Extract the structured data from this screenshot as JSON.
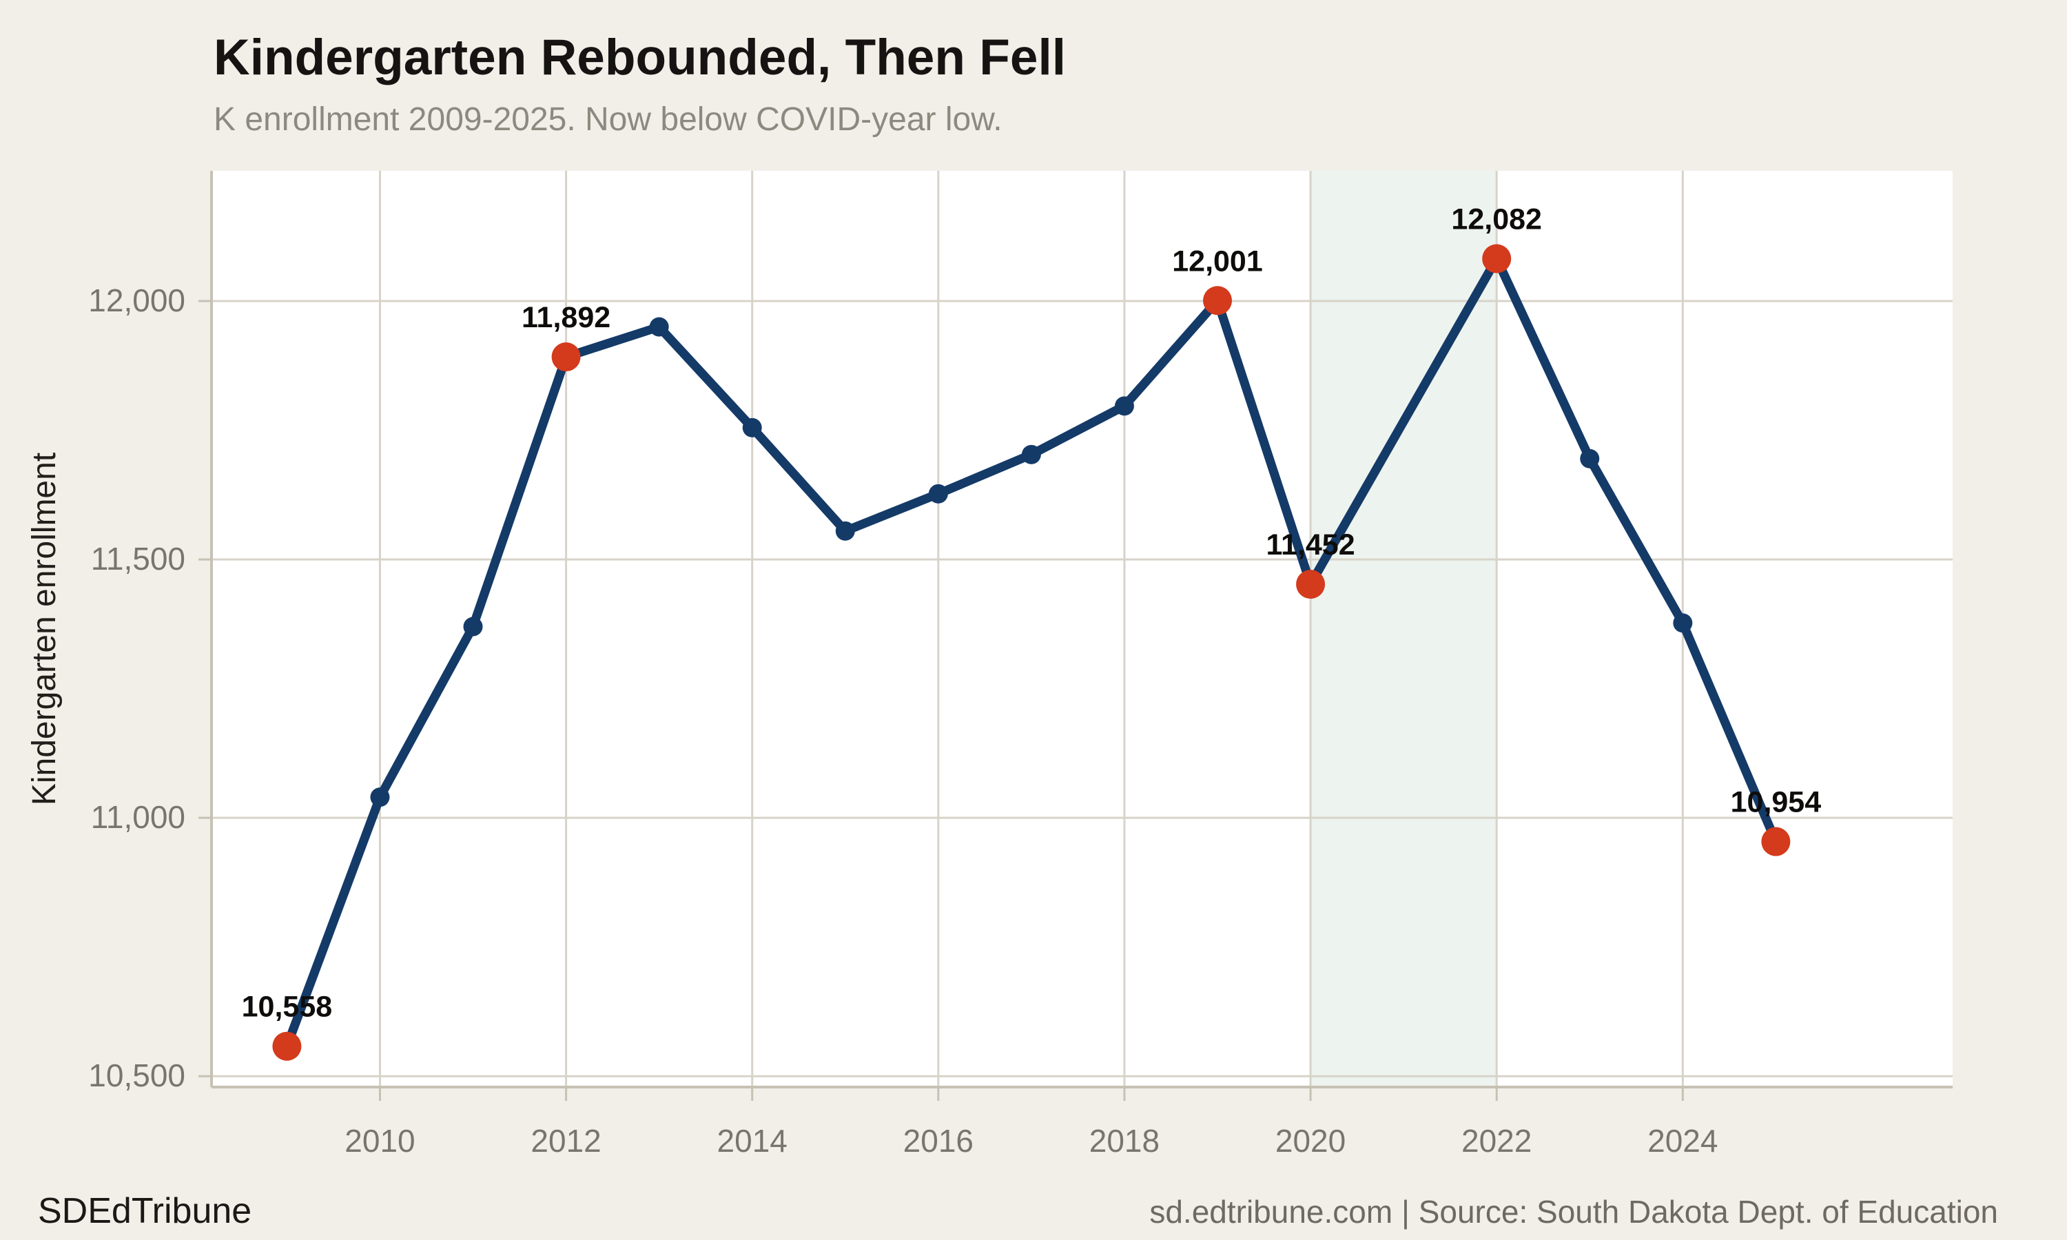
{
  "header": {
    "title": "Kindergarten Rebounded, Then Fell",
    "subtitle": "K enrollment 2009-2025. Now below COVID-year low."
  },
  "footer": {
    "brand": "SDEdTribune",
    "source": "sd.edtribune.com | Source: South Dakota Dept. of Education"
  },
  "colors": {
    "background": "#f2efe9",
    "plot_background": "#ffffff",
    "grid": "#d8d3c9",
    "axis": "#c7c1b4",
    "line": "#143a68",
    "point": "#143a68",
    "highlight_point": "#d43a1c",
    "band": "#edf3ee",
    "point_label": "#0e0d0b",
    "tick_text": "#7a756c",
    "ylabel_text": "#211f1c"
  },
  "chart_data": {
    "type": "line",
    "title": "Kindergarten Rebounded, Then Fell",
    "subtitle": "K enrollment 2009-2025. Now below COVID-year low.",
    "xlabel": "",
    "ylabel": "Kindergarten enrollment",
    "grid": true,
    "legend_position": "none",
    "xlim": [
      2008.19,
      2026.9
    ],
    "ylim": [
      10479,
      12252
    ],
    "x_ticks": [
      2010,
      2012,
      2014,
      2016,
      2018,
      2020,
      2022,
      2024
    ],
    "y_ticks": [
      {
        "value": 10500,
        "label": "10,500"
      },
      {
        "value": 11000,
        "label": "11,000"
      },
      {
        "value": 11500,
        "label": "11,500"
      },
      {
        "value": 12000,
        "label": "12,000"
      }
    ],
    "highlight_band": {
      "x_start": 2020,
      "x_end": 2022
    },
    "points": [
      {
        "year": 2009,
        "value": 10558,
        "highlight": true,
        "label": "10,558"
      },
      {
        "year": 2010,
        "value": 11040,
        "highlight": false
      },
      {
        "year": 2011,
        "value": 11370,
        "highlight": false
      },
      {
        "year": 2012,
        "value": 11892,
        "highlight": true,
        "label": "11,892"
      },
      {
        "year": 2013,
        "value": 11950,
        "highlight": false
      },
      {
        "year": 2014,
        "value": 11755,
        "highlight": false
      },
      {
        "year": 2015,
        "value": 11555,
        "highlight": false
      },
      {
        "year": 2016,
        "value": 11627,
        "highlight": false
      },
      {
        "year": 2017,
        "value": 11703,
        "highlight": false
      },
      {
        "year": 2018,
        "value": 11797,
        "highlight": false
      },
      {
        "year": 2019,
        "value": 12001,
        "highlight": true,
        "label": "12,001"
      },
      {
        "year": 2020,
        "value": 11452,
        "highlight": true,
        "label": "11,452"
      },
      {
        "year": 2022,
        "value": 12082,
        "highlight": true,
        "label": "12,082"
      },
      {
        "year": 2023,
        "value": 11695,
        "highlight": false
      },
      {
        "year": 2024,
        "value": 11377,
        "highlight": false
      },
      {
        "year": 2025,
        "value": 10954,
        "highlight": true,
        "label": "10,954"
      }
    ]
  }
}
